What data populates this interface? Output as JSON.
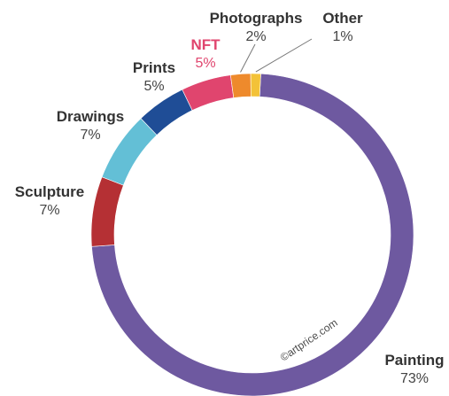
{
  "chart_data": {
    "type": "pie",
    "subtype": "donut",
    "title": "",
    "watermark": "©artprice.com",
    "slices": [
      {
        "label": "Painting",
        "value": 73,
        "value_label": "73%",
        "color": "#6e59a0",
        "label_color": "#333333",
        "value_color": "#444444"
      },
      {
        "label": "Sculpture",
        "value": 7,
        "value_label": "7%",
        "color": "#b53034",
        "label_color": "#333333",
        "value_color": "#444444"
      },
      {
        "label": "Drawings",
        "value": 7,
        "value_label": "7%",
        "color": "#63bfd6",
        "label_color": "#333333",
        "value_color": "#444444"
      },
      {
        "label": "Prints",
        "value": 5,
        "value_label": "5%",
        "color": "#1f4d96",
        "label_color": "#333333",
        "value_color": "#444444"
      },
      {
        "label": "NFT",
        "value": 5,
        "value_label": "5%",
        "color": "#e0456e",
        "label_color": "#e0456e",
        "value_color": "#e0456e"
      },
      {
        "label": "Photographs",
        "value": 2,
        "value_label": "2%",
        "color": "#ee8a2c",
        "label_color": "#333333",
        "value_color": "#444444"
      },
      {
        "label": "Other",
        "value": 1,
        "value_label": "1%",
        "color": "#f3c238",
        "label_color": "#333333",
        "value_color": "#444444"
      }
    ]
  }
}
